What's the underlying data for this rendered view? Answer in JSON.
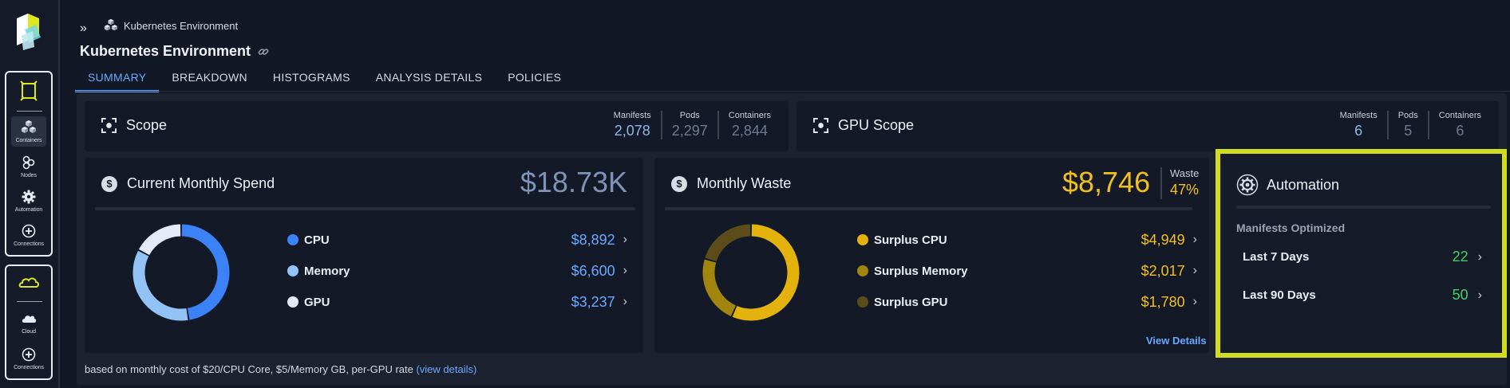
{
  "breadcrumb": {
    "label": "Kubernetes Environment"
  },
  "page": {
    "title": "Kubernetes Environment"
  },
  "rail": {
    "items": [
      {
        "label": "Containers"
      },
      {
        "label": "Nodes"
      },
      {
        "label": "Automation"
      },
      {
        "label": "Connections"
      },
      {
        "label": "Cloud"
      },
      {
        "label": "Connections"
      }
    ]
  },
  "tabs": [
    "SUMMARY",
    "BREAKDOWN",
    "HISTOGRAMS",
    "ANALYSIS DETAILS",
    "POLICIES"
  ],
  "scope": {
    "title": "Scope",
    "stats": [
      {
        "label": "Manifests",
        "value": "2,078"
      },
      {
        "label": "Pods",
        "value": "2,297"
      },
      {
        "label": "Containers",
        "value": "2,844"
      }
    ]
  },
  "gpu_scope": {
    "title": "GPU Scope",
    "stats": [
      {
        "label": "Manifests",
        "value": "6"
      },
      {
        "label": "Pods",
        "value": "5"
      },
      {
        "label": "Containers",
        "value": "6"
      }
    ]
  },
  "spend": {
    "title": "Current Monthly Spend",
    "total": "$18.73K",
    "rows": [
      {
        "label": "CPU",
        "value": "$8,892",
        "amount": 8892,
        "color": "#3b82f6"
      },
      {
        "label": "Memory",
        "value": "$6,600",
        "amount": 6600,
        "color": "#93c2f7"
      },
      {
        "label": "GPU",
        "value": "$3,237",
        "amount": 3237,
        "color": "#e4ebf7"
      }
    ]
  },
  "waste": {
    "title": "Monthly Waste",
    "total": "$8,746",
    "waste_label": "Waste",
    "waste_pct": "47%",
    "rows": [
      {
        "label": "Surplus CPU",
        "value": "$4,949",
        "amount": 4949,
        "color": "#e3b20c"
      },
      {
        "label": "Surplus Memory",
        "value": "$2,017",
        "amount": 2017,
        "color": "#a0850f"
      },
      {
        "label": "Surplus GPU",
        "value": "$1,780",
        "amount": 1780,
        "color": "#5c4c1a"
      }
    ],
    "view_details": "View Details"
  },
  "automation": {
    "title": "Automation",
    "subtitle": "Manifests Optimized",
    "rows": [
      {
        "label": "Last 7 Days",
        "value": "22"
      },
      {
        "label": "Last 90 Days",
        "value": "50"
      }
    ]
  },
  "footnote": {
    "text": "based on monthly cost of $20/CPU Core, $5/Memory GB, per-GPU rate ",
    "link": "(view details)"
  },
  "colors": {
    "accent": "#6aa8ff",
    "gold": "#f2c01c",
    "green": "#3fd268",
    "highlight": "#d2dc1e"
  }
}
